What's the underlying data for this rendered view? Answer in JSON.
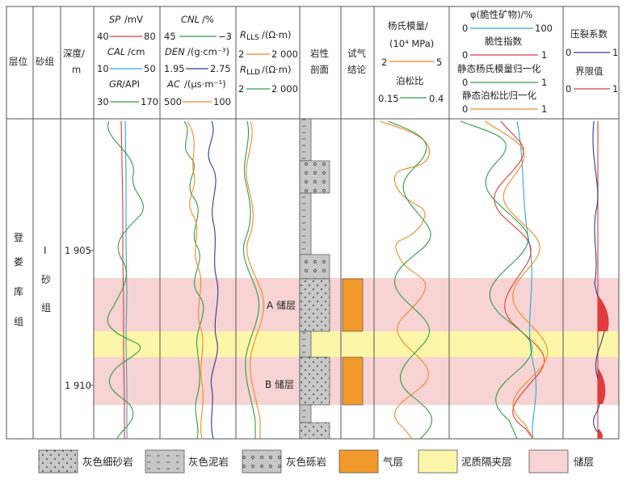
{
  "columns": {
    "layer": "层位",
    "sand_group": "砂组",
    "depth_title": "深度/",
    "depth_unit": "m",
    "lithology": [
      "岩性",
      "剖面"
    ],
    "gas_test": [
      "试气",
      "结论"
    ]
  },
  "strata": {
    "formation": [
      "登",
      "娄",
      "库",
      "组"
    ],
    "sand_group": [
      "I",
      "砂",
      "组"
    ]
  },
  "depth_labels": [
    "1 905",
    "1 910"
  ],
  "track1": {
    "sp": {
      "name": "SP",
      "unit": "/mV",
      "min": "40",
      "max": "80",
      "color": "#e23a3a"
    },
    "cal": {
      "name": "CAL",
      "unit": "/cm",
      "min": "10",
      "max": "50",
      "color": "#2aa7d8"
    },
    "gr": {
      "name": "GR",
      "unit": "/API",
      "min": "30",
      "max": "170",
      "color": "#2f9e44"
    }
  },
  "track2": {
    "cnl": {
      "name": "CNL",
      "unit": "/%",
      "min": "45",
      "max": "−3",
      "color": "#2f9e44"
    },
    "den": {
      "name": "DEN",
      "unit": "/(g·cm⁻³)",
      "min": "1.95",
      "max": "2.75",
      "color": "#2c3e8c"
    },
    "ac": {
      "name": "AC",
      "unit": "/(μs·m⁻¹)",
      "min": "500",
      "max": "100",
      "color": "#f08a24"
    }
  },
  "track3": {
    "rlls": {
      "name": "R",
      "sub": "LLS",
      "unit": "/(Ω·m)",
      "min": "2",
      "max": "2 000",
      "color": "#f08a24"
    },
    "rlld": {
      "name": "R",
      "sub": "LLD",
      "unit": "/(Ω·m)",
      "min": "2",
      "max": "2 000",
      "color": "#2f9e44"
    }
  },
  "track5": {
    "ym_title": "杨氏模量/",
    "ym_unit": "(10⁴ MPa)",
    "ym_min": "2",
    "ym_max": "5",
    "pr_title": "泊松比",
    "pr_min": "0.15",
    "pr_max": "0.4"
  },
  "track6": {
    "phi_title": "φ(脆性矿物)/%",
    "phi_min": "0",
    "phi_max": "100",
    "bi_title": "脆性指数",
    "bi_min": "0",
    "bi_max": "1",
    "ym_norm_title": "静态杨氏模量归一化",
    "ym_norm_min": "0",
    "ym_norm_max": "1",
    "pr_norm_title": "静态泊松比归一化",
    "pr_norm_min": "0",
    "pr_norm_max": "1"
  },
  "track7": {
    "fc_title": "压裂系数",
    "fc_min": "0",
    "fc_max": "1",
    "lim_title": "界限值",
    "lim_min": "0",
    "lim_max": "1"
  },
  "reservoirs": [
    "A 储层",
    "B 储层"
  ],
  "legend": [
    {
      "label": "灰色细砂岩",
      "pattern": "dots"
    },
    {
      "label": "灰色泥岩",
      "pattern": "dashes"
    },
    {
      "label": "灰色砾岩",
      "pattern": "circles"
    },
    {
      "label": "气层",
      "pattern": "gas"
    },
    {
      "label": "泥质隔夹层",
      "pattern": "mud"
    },
    {
      "label": "储层",
      "pattern": "reservoir"
    }
  ],
  "colors": {
    "reservoir": "#f7d3d3",
    "mud_interlayer": "#fdf6a8",
    "gas": "#f39a2c",
    "lith_fill": "#c7c7c7",
    "red": "#e23a3a",
    "green": "#2f9e44",
    "blue": "#2aa7d8",
    "navy": "#2c3e8c",
    "orange": "#f08a24"
  }
}
